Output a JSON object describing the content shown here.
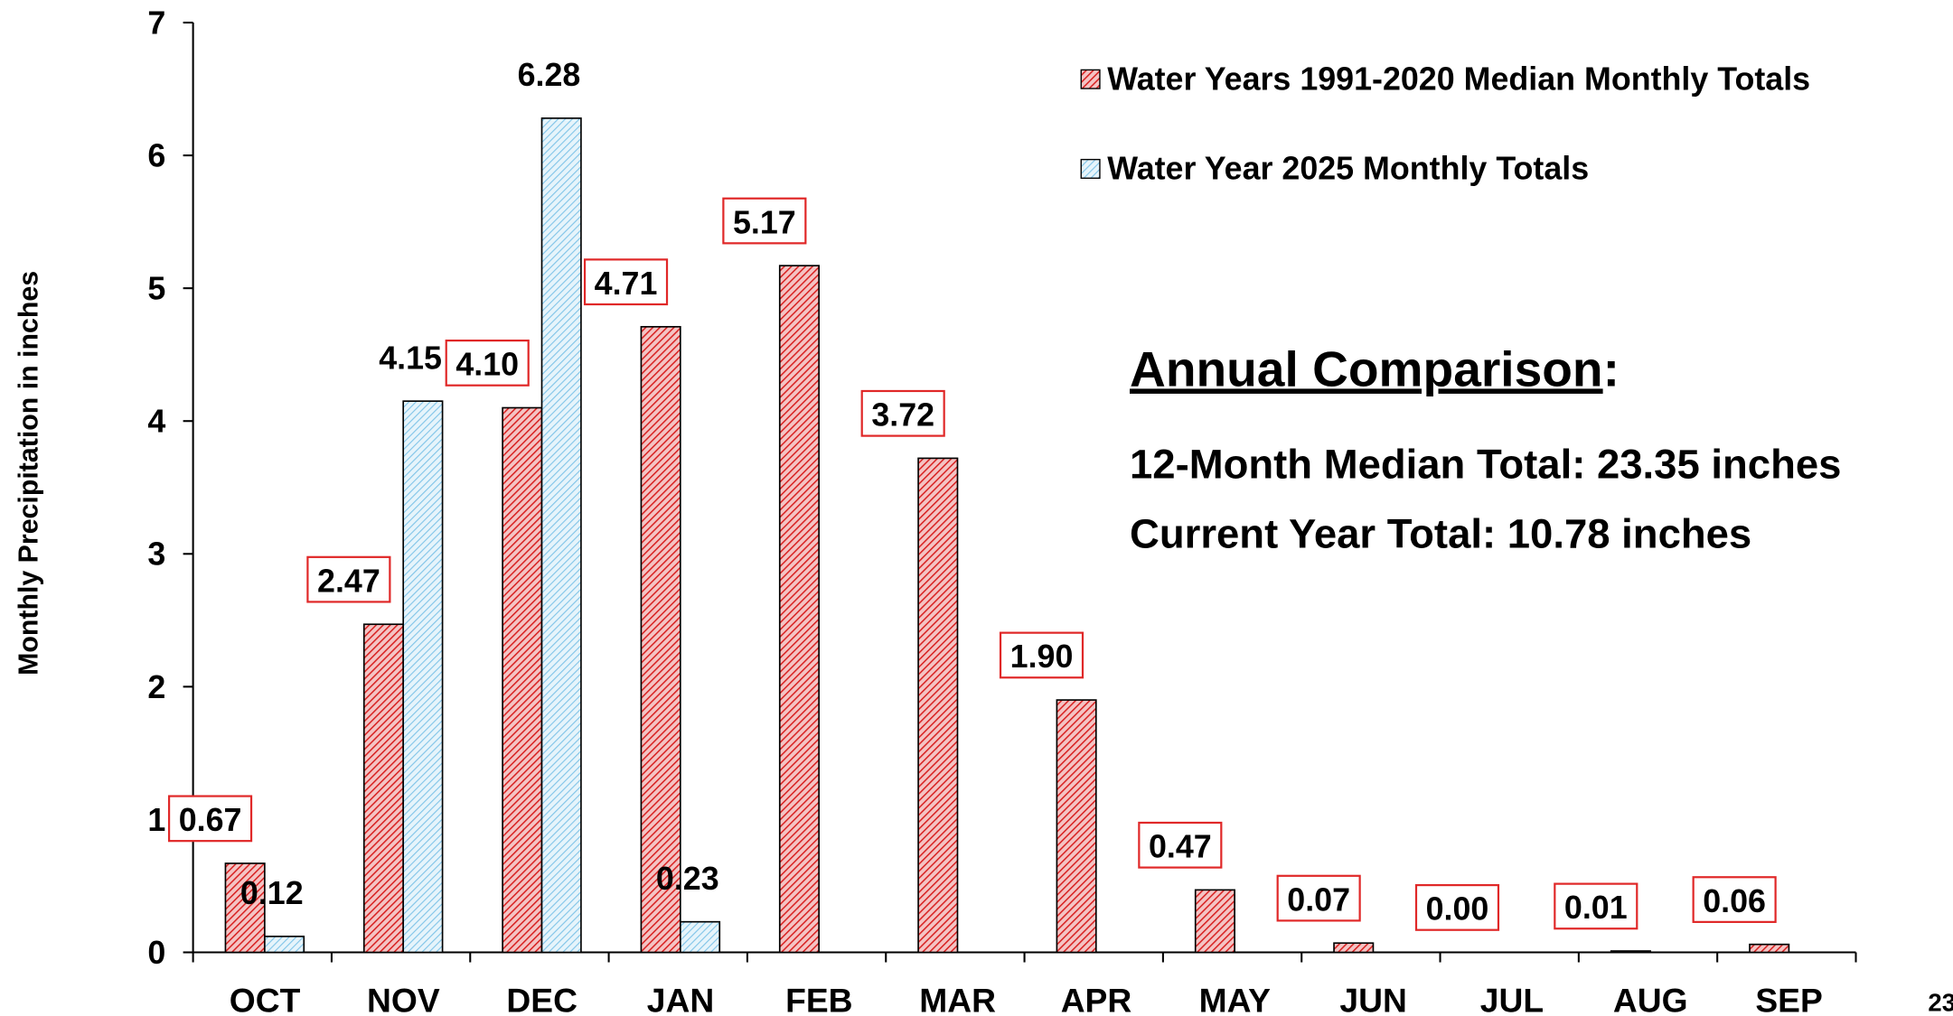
{
  "chart_data": {
    "type": "bar",
    "y_label": "Monthly Precipitation  in inches",
    "categories": [
      "OCT",
      "NOV",
      "DEC",
      "JAN",
      "FEB",
      "MAR",
      "APR",
      "MAY",
      "JUN",
      "JUL",
      "AUG",
      "SEP"
    ],
    "series": [
      {
        "name": "Water Years 1991-2020 Median Monthly Totals",
        "color": "#e02828",
        "values": [
          0.67,
          2.47,
          4.1,
          4.71,
          5.17,
          3.72,
          1.9,
          0.47,
          0.07,
          0.0,
          0.01,
          0.06
        ],
        "value_labels": [
          "0.67",
          "2.47",
          "4.10",
          "4.71",
          "5.17",
          "3.72",
          "1.90",
          "0.47",
          "0.07",
          "0.00",
          "0.01",
          "0.06"
        ]
      },
      {
        "name": "Water Year 2025 Monthly Totals",
        "color": "#7fc4e8",
        "values": [
          0.12,
          4.15,
          6.28,
          0.23,
          null,
          null,
          null,
          null,
          null,
          null,
          null,
          null
        ]
      }
    ],
    "ylim": [
      0,
      7
    ],
    "yticks": [
      0,
      1,
      2,
      3,
      4,
      5,
      6,
      7
    ],
    "legend": "upper right",
    "annotation": {
      "heading": "Annual Comparison",
      "heading_suffix": ":",
      "lines": [
        "12-Month Median Total: 23.35 inches",
        "Current Year Total: 10.78 inches"
      ]
    },
    "page_number": "23"
  }
}
